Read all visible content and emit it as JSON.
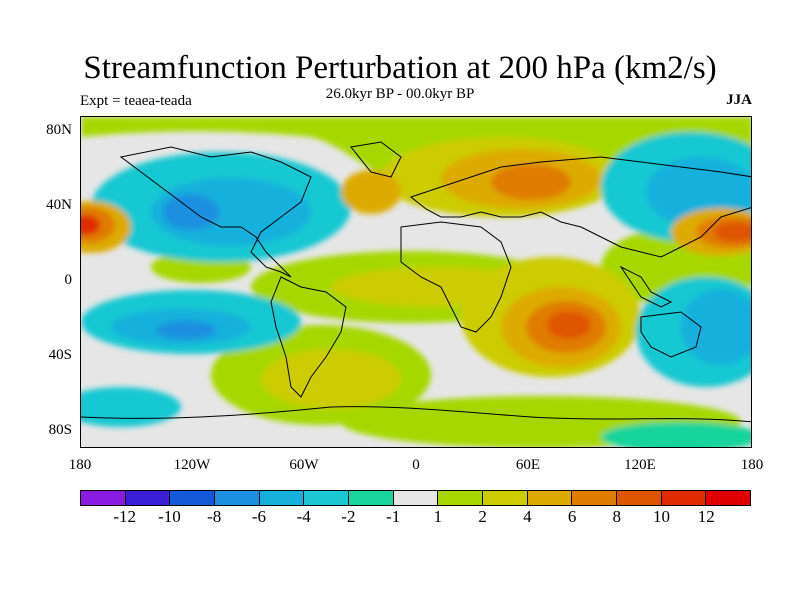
{
  "title": "Streamfunction Perturbation at 200 hPa (km2/s)",
  "subtitle": "26.0kyr BP - 00.0kyr BP",
  "expt": "Expt = teaea-teada",
  "season": "JJA",
  "map": {
    "lat_labels": [
      "80N",
      "40N",
      "0",
      "40S",
      "80S"
    ],
    "lon_labels": [
      "180",
      "120W",
      "60W",
      "0",
      "60E",
      "120E",
      "180"
    ]
  },
  "colorbar": {
    "colors": [
      "#8a1be0",
      "#3a1fd6",
      "#1458d8",
      "#1b8fe0",
      "#16b0dc",
      "#19c8d2",
      "#19d49c",
      "#e6e6e6",
      "#a6d800",
      "#cccc00",
      "#ddab00",
      "#e07c00",
      "#e05500",
      "#e02a00",
      "#e00000"
    ],
    "labels": [
      "-12",
      "-10",
      "-8",
      "-6",
      "-4",
      "-2",
      "-1",
      "1",
      "2",
      "4",
      "6",
      "8",
      "10",
      "12"
    ]
  }
}
